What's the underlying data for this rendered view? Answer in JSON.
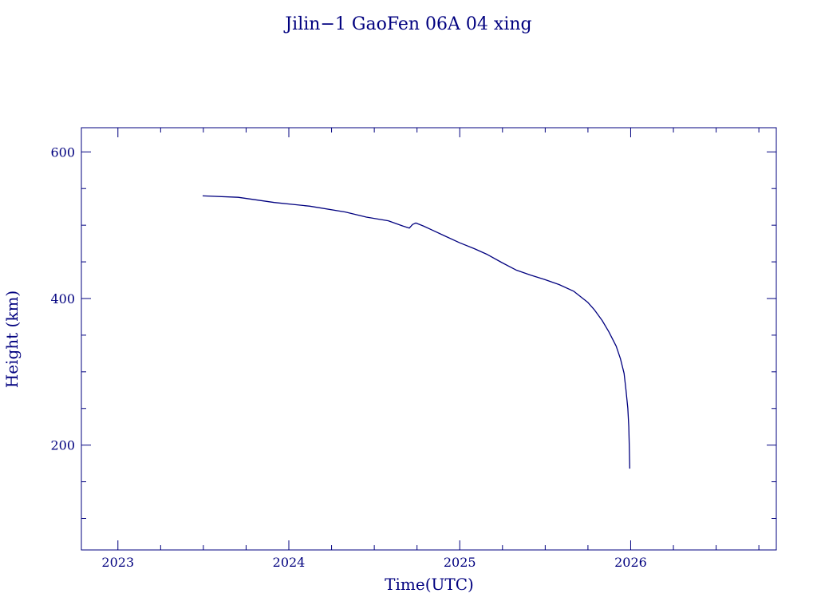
{
  "chart_data": {
    "type": "line",
    "title": "Jilin−1 GaoFen 06A 04 xing",
    "xlabel": "Time(UTC)",
    "ylabel": "Height (km)",
    "xlim": [
      "2022-10-15",
      "2026-11-08"
    ],
    "ylim": [
      57,
      633
    ],
    "x_ticks": [
      "2023",
      "2024",
      "2025",
      "2026"
    ],
    "y_ticks": [
      200,
      400,
      600
    ],
    "grid": false,
    "color": "#00007f",
    "series": [
      {
        "points": [
          [
            "2023-07-01",
            540
          ],
          [
            "2023-09-15",
            538
          ],
          [
            "2023-12-01",
            531
          ],
          [
            "2024-02-15",
            526
          ],
          [
            "2024-05-01",
            518
          ],
          [
            "2024-06-15",
            511
          ],
          [
            "2024-08-01",
            506
          ],
          [
            "2024-09-01",
            499
          ],
          [
            "2024-09-15",
            496
          ],
          [
            "2024-09-22",
            501
          ],
          [
            "2024-09-29",
            503
          ],
          [
            "2024-10-15",
            499
          ],
          [
            "2024-11-01",
            494
          ],
          [
            "2024-12-01",
            485
          ],
          [
            "2025-01-01",
            476
          ],
          [
            "2025-02-01",
            468
          ],
          [
            "2025-03-01",
            460
          ],
          [
            "2025-04-01",
            449
          ],
          [
            "2025-05-01",
            439
          ],
          [
            "2025-06-01",
            432
          ],
          [
            "2025-07-01",
            426
          ],
          [
            "2025-08-01",
            419
          ],
          [
            "2025-09-01",
            410
          ],
          [
            "2025-10-01",
            395
          ],
          [
            "2025-10-15",
            385
          ],
          [
            "2025-11-01",
            370
          ],
          [
            "2025-11-15",
            355
          ],
          [
            "2025-12-01",
            335
          ],
          [
            "2025-12-10",
            318
          ],
          [
            "2025-12-18",
            298
          ],
          [
            "2025-12-22",
            275
          ],
          [
            "2025-12-26",
            250
          ],
          [
            "2025-12-28",
            225
          ],
          [
            "2025-12-29",
            200
          ],
          [
            "2025-12-30",
            168
          ]
        ]
      }
    ]
  }
}
